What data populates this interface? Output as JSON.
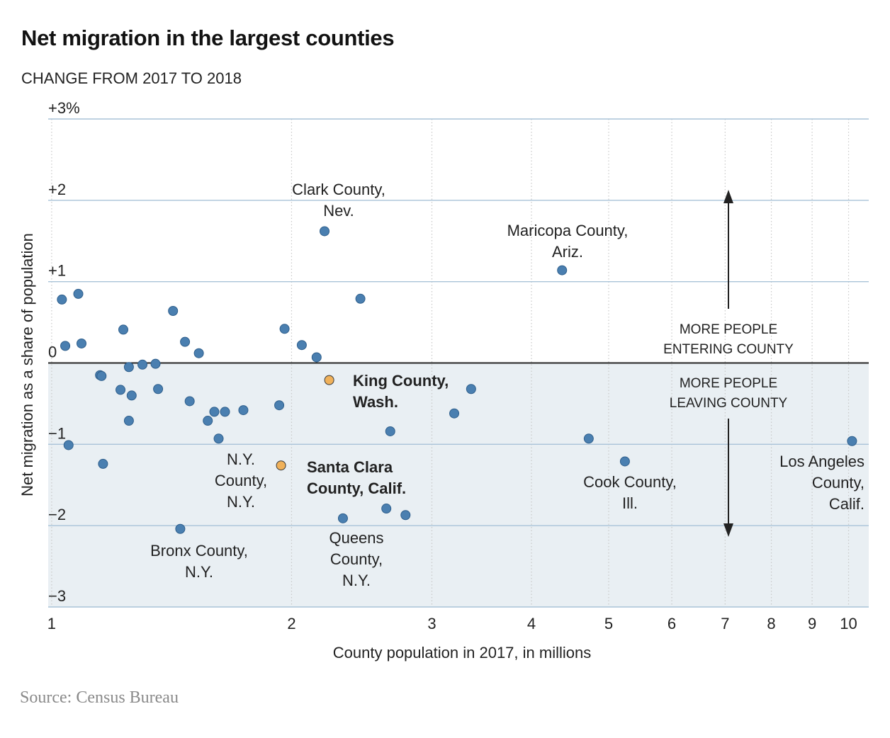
{
  "title": "Net migration in the largest counties",
  "subtitle": "CHANGE FROM 2017 TO 2018",
  "source": "Source: Census Bureau",
  "chart_data": {
    "type": "scatter",
    "xlabel": "County population in 2017, in millions",
    "ylabel": "Net migration as a share of population",
    "xscale": "log",
    "xlim": [
      0.99,
      10.6
    ],
    "ylim": [
      -3,
      3
    ],
    "xticks": [
      1,
      2,
      3,
      4,
      5,
      6,
      7,
      8,
      9,
      10
    ],
    "xtick_labels": [
      "1",
      "2",
      "3",
      "4",
      "5",
      "6",
      "7",
      "8",
      "9",
      "10"
    ],
    "yticks": [
      3,
      2,
      1,
      0,
      -1,
      -2,
      -3
    ],
    "ytick_labels": [
      "+3%",
      "+2",
      "+1",
      "0",
      "−1",
      "−2",
      "−3"
    ],
    "grid": true,
    "negative_region_shaded": true,
    "colors": {
      "point": "#4a7fb0",
      "highlight": "#f0b15a",
      "shade": "#e9eff3",
      "grid": "#a9c3d8"
    },
    "points": [
      {
        "x": 1.03,
        "y": 0.78
      },
      {
        "x": 1.08,
        "y": 0.85
      },
      {
        "x": 1.04,
        "y": 0.21
      },
      {
        "x": 1.09,
        "y": 0.24
      },
      {
        "x": 1.05,
        "y": -1.01
      },
      {
        "x": 1.15,
        "y": -0.15
      },
      {
        "x": 1.155,
        "y": -0.16
      },
      {
        "x": 1.16,
        "y": -1.24
      },
      {
        "x": 1.23,
        "y": 0.41
      },
      {
        "x": 1.22,
        "y": -0.33
      },
      {
        "x": 1.25,
        "y": -0.05
      },
      {
        "x": 1.26,
        "y": -0.4
      },
      {
        "x": 1.25,
        "y": -0.71
      },
      {
        "x": 1.3,
        "y": -0.02
      },
      {
        "x": 1.35,
        "y": -0.01
      },
      {
        "x": 1.36,
        "y": -0.32
      },
      {
        "x": 1.42,
        "y": 0.64
      },
      {
        "x": 1.47,
        "y": 0.26
      },
      {
        "x": 1.49,
        "y": -0.47
      },
      {
        "x": 1.53,
        "y": 0.12
      },
      {
        "x": 1.45,
        "y": -2.04
      },
      {
        "x": 1.57,
        "y": -0.71
      },
      {
        "x": 1.6,
        "y": -0.6
      },
      {
        "x": 1.62,
        "y": -0.93
      },
      {
        "x": 1.65,
        "y": -0.6
      },
      {
        "x": 1.74,
        "y": -0.58
      },
      {
        "x": 1.93,
        "y": -0.52
      },
      {
        "x": 1.96,
        "y": 0.42
      },
      {
        "x": 2.06,
        "y": 0.22
      },
      {
        "x": 2.15,
        "y": 0.07
      },
      {
        "x": 2.2,
        "y": 1.62
      },
      {
        "x": 2.32,
        "y": -1.91
      },
      {
        "x": 2.44,
        "y": 0.79
      },
      {
        "x": 2.63,
        "y": -1.79
      },
      {
        "x": 2.66,
        "y": -0.84
      },
      {
        "x": 2.78,
        "y": -1.87
      },
      {
        "x": 3.2,
        "y": -0.62
      },
      {
        "x": 3.36,
        "y": -0.32
      },
      {
        "x": 4.37,
        "y": 1.14
      },
      {
        "x": 4.72,
        "y": -0.93
      },
      {
        "x": 5.24,
        "y": -1.21
      },
      {
        "x": 10.1,
        "y": -0.96
      }
    ],
    "highlighted_points": [
      {
        "x": 2.23,
        "y": -0.21,
        "label": "King County, Wash."
      },
      {
        "x": 1.94,
        "y": -1.26,
        "label": "Santa Clara County, Calif."
      }
    ],
    "annotations": [
      "Clark County, Nev.",
      "Maricopa County, Ariz.",
      "N.Y. County, N.Y.",
      "Bronx County, N.Y.",
      "Queens County, N.Y.",
      "Cook County, Ill.",
      "Los Angeles County, Calif."
    ],
    "direction_labels": {
      "up": "MORE PEOPLE ENTERING COUNTY",
      "down": "MORE PEOPLE LEAVING COUNTY"
    }
  }
}
